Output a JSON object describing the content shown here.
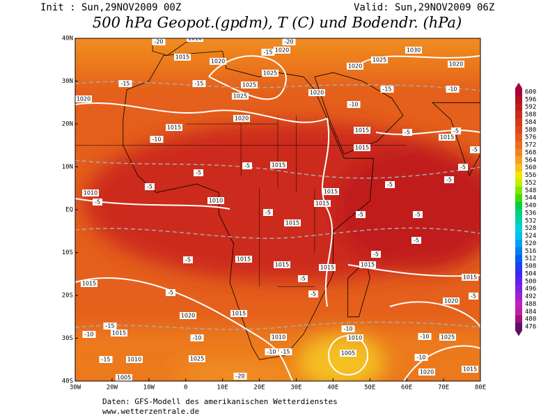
{
  "header": {
    "init": "Init : Sun,29NOV2009 00Z",
    "valid": "Valid: Sun,29NOV2009 06Z",
    "title": "500 hPa Geopot.(gpdm), T (C) und Bodendr. (hPa)"
  },
  "axes": {
    "lat_labels": [
      "40N",
      "30N",
      "20N",
      "10N",
      "EQ",
      "10S",
      "20S",
      "30S",
      "40S"
    ],
    "lon_labels": [
      "30W",
      "20W",
      "10W",
      "0",
      "10E",
      "20E",
      "30E",
      "40E",
      "50E",
      "60E",
      "70E",
      "80E"
    ]
  },
  "colorbar": {
    "labels": [
      600,
      596,
      592,
      588,
      584,
      580,
      576,
      572,
      568,
      564,
      560,
      556,
      552,
      548,
      544,
      540,
      536,
      532,
      528,
      524,
      520,
      516,
      512,
      508,
      504,
      500,
      496,
      492,
      488,
      484,
      480,
      476
    ],
    "colors": [
      "#a8003a",
      "#b41024",
      "#c01c1c",
      "#cc2a1c",
      "#d4381c",
      "#dc481c",
      "#e45a1c",
      "#ec6e1c",
      "#f08420",
      "#f4a020",
      "#f8c020",
      "#f0e800",
      "#c0f000",
      "#80e800",
      "#40dc00",
      "#00d040",
      "#00d080",
      "#00d0b0",
      "#00d0d8",
      "#00c0f0",
      "#00a0f0",
      "#0080f0",
      "#0060f0",
      "#2040f0",
      "#4028f0",
      "#6020f0",
      "#8020e0",
      "#a020d0",
      "#c020c0",
      "#c020a0",
      "#a01080",
      "#601060"
    ]
  },
  "map": {
    "isobar_labels": [
      "1010",
      "1015",
      "1020",
      "1020",
      "1025",
      "1025",
      "1025",
      "1020",
      "1020",
      "1025",
      "1030",
      "1020",
      "1020",
      "1015",
      "1020",
      "1015",
      "1015",
      "1015",
      "1015",
      "1010",
      "1010",
      "1015",
      "1015",
      "1015",
      "1015",
      "1015",
      "1015",
      "1015",
      "1015",
      "1015",
      "1020",
      "1015",
      "1020",
      "1015",
      "1010",
      "1010",
      "1025",
      "1005",
      "1010",
      "1025",
      "1020",
      "1005",
      "1015"
    ],
    "temperature_labels": [
      "-15",
      "-15",
      "-15",
      "-20",
      "-20",
      "-15",
      "-10",
      "-10",
      "-10",
      "-5",
      "-5",
      "-5",
      "-5",
      "-5",
      "-5",
      "-5",
      "-5",
      "-5",
      "-5",
      "-5",
      "-5",
      "-5",
      "-5",
      "-5",
      "-5",
      "-5",
      "-5",
      "-5",
      "-5",
      "-10",
      "-10",
      "-15",
      "-10",
      "-10",
      "-15",
      "-10",
      "-20",
      "-10",
      "-15"
    ]
  },
  "footer": {
    "source": "Daten: GFS-Modell des amerikanischen Wetterdienstes",
    "url": "www.wetterzentrale.de"
  }
}
